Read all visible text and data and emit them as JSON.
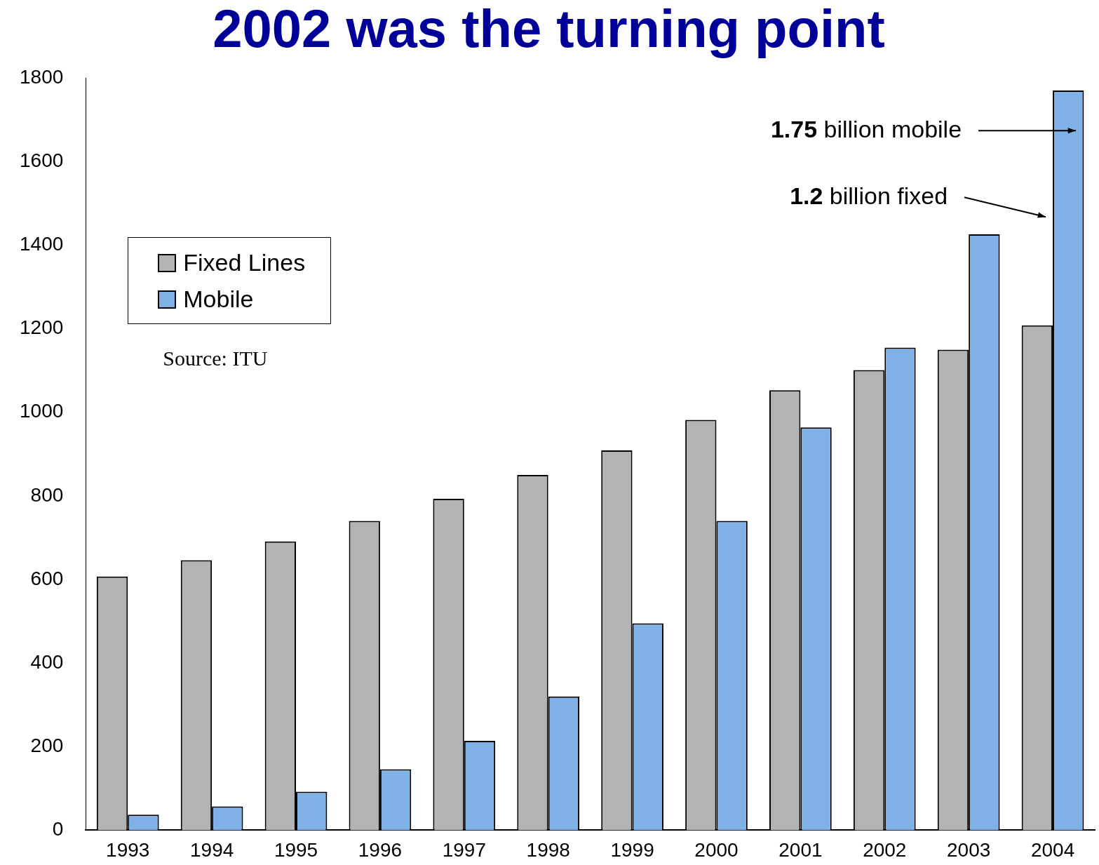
{
  "chart_data": {
    "type": "bar",
    "title": "2002 was the turning point",
    "categories": [
      "1993",
      "1994",
      "1995",
      "1996",
      "1997",
      "1998",
      "1999",
      "2000",
      "2001",
      "2002",
      "2003",
      "2004"
    ],
    "series": [
      {
        "name": "Fixed Lines",
        "color": "#b3b3b3",
        "values": [
          607,
          646,
          691,
          740,
          793,
          850,
          909,
          982,
          1053,
          1101,
          1150,
          1208
        ]
      },
      {
        "name": "Mobile",
        "color": "#7fb0e6",
        "values": [
          37,
          57,
          92,
          146,
          214,
          320,
          495,
          740,
          964,
          1155,
          1426,
          1770
        ]
      }
    ],
    "ylim": [
      0,
      1800
    ],
    "yticks": [
      0,
      200,
      400,
      600,
      800,
      1000,
      1200,
      1400,
      1600,
      1800
    ],
    "grid": false,
    "legend": "left",
    "annotations": [
      "1.75 billion mobile",
      "1.2 billion fixed",
      "Source: ITU"
    ]
  }
}
